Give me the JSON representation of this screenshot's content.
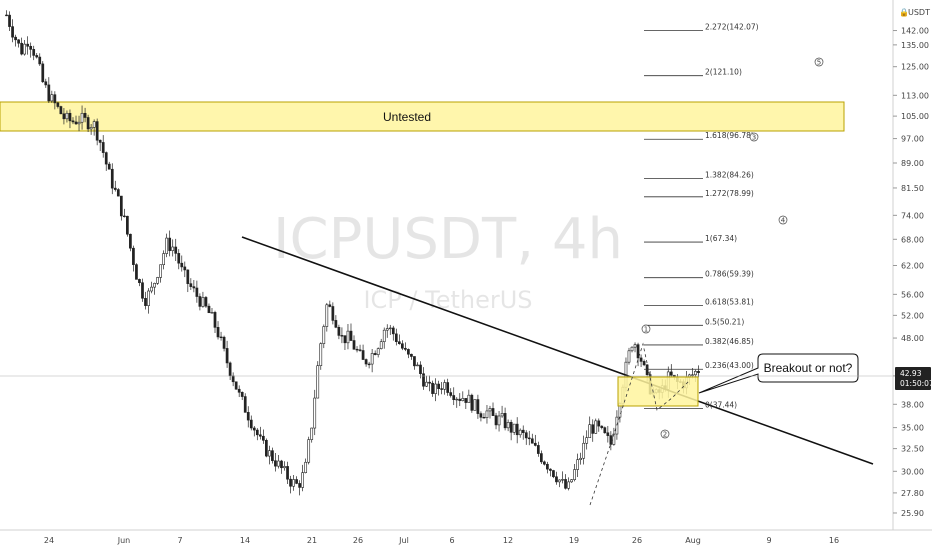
{
  "chart_data": {
    "type": "candlestick",
    "symbol": "ICPUSDT, 4h",
    "pair_name": "ICP / TetherUS",
    "currency_label": "USDT",
    "y_ticks": [
      "142.00",
      "135.00",
      "125.00",
      "113.00",
      "105.00",
      "97.00",
      "89.00",
      "81.50",
      "74.00",
      "68.00",
      "62.00",
      "56.00",
      "52.00",
      "48.00",
      "42.00",
      "38.00",
      "35.00",
      "32.50",
      "30.00",
      "27.80",
      "25.90"
    ],
    "x_ticks": [
      "24",
      "Jun",
      "7",
      "14",
      "21",
      "26",
      "Jul",
      "6",
      "12",
      "19",
      "26",
      "Aug",
      "9",
      "16"
    ],
    "last_price": "42.93",
    "countdown": "01:50:07",
    "zone": {
      "label": "Untested",
      "from": 97.5,
      "to": 110.5
    },
    "fib_levels": [
      {
        "ratio": "2.272",
        "price": "142.07"
      },
      {
        "ratio": "2",
        "price": "121.10"
      },
      {
        "ratio": "1.618",
        "price": "96.78"
      },
      {
        "ratio": "1.382",
        "price": "84.26"
      },
      {
        "ratio": "1.272",
        "price": "78.99"
      },
      {
        "ratio": "1",
        "price": "67.34"
      },
      {
        "ratio": "0.786",
        "price": "59.39"
      },
      {
        "ratio": "0.618",
        "price": "53.81"
      },
      {
        "ratio": "0.5",
        "price": "50.21"
      },
      {
        "ratio": "0.382",
        "price": "46.85"
      },
      {
        "ratio": "0.236",
        "price": "43.00"
      },
      {
        "ratio": "0",
        "price": "37.44"
      }
    ],
    "waves": [
      "1",
      "2",
      "3",
      "4",
      "5"
    ],
    "callout": "Breakout or not?",
    "series_close_path": [
      [
        0,
        150
      ],
      [
        0.6,
        140
      ],
      [
        1.2,
        132
      ],
      [
        1.8,
        138
      ],
      [
        2.4,
        130
      ],
      [
        3,
        118
      ],
      [
        3.6,
        112
      ],
      [
        4.2,
        108
      ],
      [
        4.8,
        104
      ],
      [
        5.4,
        103
      ],
      [
        6,
        104
      ],
      [
        6.6,
        103
      ],
      [
        7.2,
        102
      ],
      [
        7.8,
        95
      ],
      [
        8.4,
        86
      ],
      [
        9,
        80
      ],
      [
        9.6,
        74
      ],
      [
        10.2,
        66
      ],
      [
        10.8,
        59
      ],
      [
        11.4,
        55
      ],
      [
        12,
        57
      ],
      [
        12.6,
        62
      ],
      [
        13.2,
        67
      ],
      [
        13.8,
        66
      ],
      [
        14.4,
        61
      ],
      [
        15,
        58
      ],
      [
        15.6,
        56
      ],
      [
        16.2,
        54
      ],
      [
        16.8,
        52
      ],
      [
        17.4,
        49
      ],
      [
        18,
        45
      ],
      [
        18.6,
        42
      ],
      [
        19.2,
        39
      ],
      [
        19.8,
        37
      ],
      [
        20.4,
        35
      ],
      [
        21,
        33
      ],
      [
        21.6,
        32
      ],
      [
        22.2,
        31
      ],
      [
        22.8,
        30
      ],
      [
        23.4,
        29
      ],
      [
        24,
        28.5
      ],
      [
        24.6,
        30
      ],
      [
        25.2,
        36
      ],
      [
        25.8,
        46
      ],
      [
        26.4,
        54
      ],
      [
        27,
        52
      ],
      [
        27.6,
        48
      ],
      [
        28.2,
        48
      ],
      [
        28.8,
        46
      ],
      [
        29.4,
        44
      ],
      [
        30,
        45
      ],
      [
        30.6,
        47
      ],
      [
        31.2,
        50
      ],
      [
        31.8,
        49
      ],
      [
        32.4,
        47
      ],
      [
        33,
        45
      ],
      [
        33.6,
        44
      ],
      [
        34.2,
        42
      ],
      [
        34.8,
        40
      ],
      [
        35.4,
        40
      ],
      [
        36,
        41
      ],
      [
        36.6,
        40
      ],
      [
        37.2,
        39
      ],
      [
        37.8,
        39
      ],
      [
        38.4,
        38
      ],
      [
        39,
        37
      ],
      [
        39.6,
        37
      ],
      [
        40.2,
        36
      ],
      [
        40.8,
        36
      ],
      [
        41.4,
        35
      ],
      [
        42,
        34.5
      ],
      [
        42.6,
        34
      ],
      [
        43.2,
        33
      ],
      [
        43.8,
        32
      ],
      [
        44.4,
        31
      ],
      [
        45,
        30
      ],
      [
        45.6,
        29
      ],
      [
        46.2,
        28
      ],
      [
        46.8,
        30
      ],
      [
        47.4,
        32
      ],
      [
        48,
        35
      ],
      [
        48.6,
        35
      ],
      [
        49.2,
        34
      ],
      [
        49.8,
        33
      ],
      [
        50.4,
        38
      ],
      [
        51,
        43
      ],
      [
        51.6,
        48
      ],
      [
        52.2,
        45
      ],
      [
        52.8,
        41
      ],
      [
        53.4,
        39
      ],
      [
        54,
        40
      ],
      [
        54.6,
        42
      ],
      [
        55.2,
        41
      ],
      [
        55.8,
        41
      ],
      [
        56.4,
        42
      ],
      [
        57,
        42.93
      ]
    ]
  }
}
